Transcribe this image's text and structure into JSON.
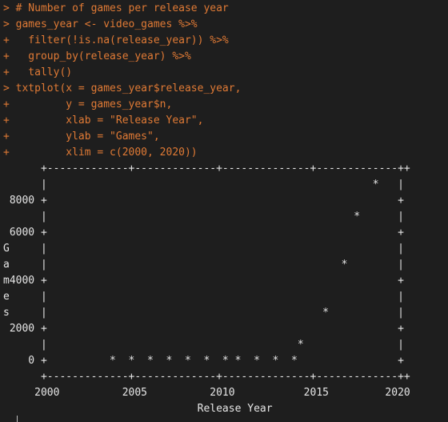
{
  "console": {
    "command_lines": [
      "> # Number of games per release year",
      "> games_year <- video_games %>%",
      "+   filter(!is.na(release_year)) %>%",
      "+   group_by(release_year) %>%",
      "+   tally()",
      "> txtplot(x = games_year$release_year,",
      "+         y = games_year$n,",
      "+         xlab = \"Release Year\",",
      "+         ylab = \"Games\",",
      "+         xlim = c(2000, 2020))"
    ],
    "plot_lines": [
      "      +-------------+-------------+--------------+-------------++",
      "      |                                                    *   |",
      " 8000 +                                                        +",
      "      |                                                 *      |",
      " 6000 +                                                        +",
      "G     |                                                        |",
      "a     |                                               *        |",
      "m4000 +                                                        +",
      "e     |                                                        |",
      "s     |                                            *           |",
      " 2000 +                                                        +",
      "      |                                        *               |",
      "    0 +          *  *  *  *  *  *  * *  *  *  *                +",
      "      +-------------+-------------+--------------+-------------++",
      "     2000          2005          2010           2015         2020",
      "                               Release Year"
    ],
    "colors": {
      "background": "#1e1e1e",
      "command_text": "#e07a35",
      "output_text": "#e6e6e6"
    }
  },
  "chart_data": {
    "type": "scatter",
    "xlabel": "Release Year",
    "ylabel": "Games",
    "xlim": [
      2000,
      2020
    ],
    "ylim": [
      0,
      9000
    ],
    "x_ticks": [
      2000,
      2005,
      2010,
      2015,
      2020
    ],
    "y_ticks": [
      0,
      2000,
      4000,
      6000,
      8000
    ],
    "x": [
      2004,
      2005,
      2006,
      2007,
      2008,
      2009,
      2010,
      2011,
      2012,
      2013,
      2014,
      2015,
      2016,
      2017,
      2018
    ],
    "y": [
      0,
      0,
      0,
      0,
      0,
      0,
      0,
      0,
      0,
      0,
      800,
      2800,
      5800,
      7000,
      8600
    ]
  }
}
